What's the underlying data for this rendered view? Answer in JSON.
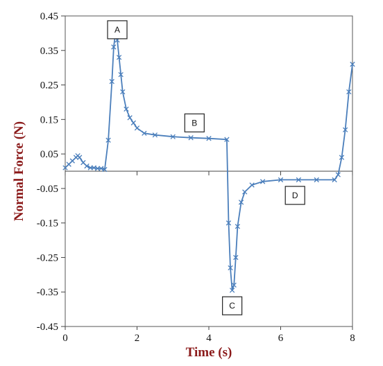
{
  "chart_data": {
    "type": "line",
    "title": "",
    "xlabel": "Time (s)",
    "ylabel": "Normal Force (N)",
    "xlim": [
      0,
      8
    ],
    "ylim": [
      -0.45,
      0.45
    ],
    "x_ticks": [
      "0",
      "2",
      "4",
      "6",
      "8"
    ],
    "y_ticks": [
      "0.45",
      "0.35",
      "0.25",
      "0.15",
      "0.05",
      "-0.05",
      "-0.15",
      "-0.25",
      "-0.35",
      "-0.45"
    ],
    "grid": false,
    "legend": "none",
    "marker": "x",
    "line_color": "#4a7ebb",
    "series": [
      {
        "x": [
          0,
          0.1,
          0.2,
          0.3,
          0.35,
          0.4,
          0.5,
          0.6,
          0.7,
          0.8,
          0.9,
          1.0,
          1.1,
          1.2,
          1.3,
          1.35,
          1.4,
          1.45,
          1.5,
          1.55,
          1.6,
          1.7,
          1.8,
          1.9,
          2.0,
          2.2,
          2.5,
          3.0,
          3.5,
          4.0,
          4.5,
          4.55,
          4.6,
          4.65,
          4.7,
          4.75,
          4.8,
          4.9,
          5.0,
          5.2,
          5.5,
          6.0,
          6.5,
          7.0,
          7.5,
          7.6,
          7.7,
          7.8,
          7.9,
          8.0
        ],
        "y": [
          0.01,
          0.02,
          0.03,
          0.04,
          0.045,
          0.04,
          0.025,
          0.015,
          0.01,
          0.01,
          0.008,
          0.008,
          0.005,
          0.09,
          0.26,
          0.36,
          0.4,
          0.38,
          0.33,
          0.28,
          0.23,
          0.18,
          0.155,
          0.14,
          0.125,
          0.11,
          0.105,
          0.1,
          0.097,
          0.095,
          0.092,
          -0.15,
          -0.28,
          -0.345,
          -0.33,
          -0.25,
          -0.16,
          -0.09,
          -0.06,
          -0.04,
          -0.03,
          -0.025,
          -0.025,
          -0.025,
          -0.025,
          -0.01,
          0.04,
          0.12,
          0.23,
          0.31
        ]
      }
    ],
    "annotations": [
      {
        "label": "A",
        "x": 1.45,
        "y": 0.41
      },
      {
        "label": "B",
        "x": 3.6,
        "y": 0.14
      },
      {
        "label": "C",
        "x": 4.65,
        "y": -0.39
      },
      {
        "label": "D",
        "x": 6.4,
        "y": -0.07
      }
    ]
  }
}
